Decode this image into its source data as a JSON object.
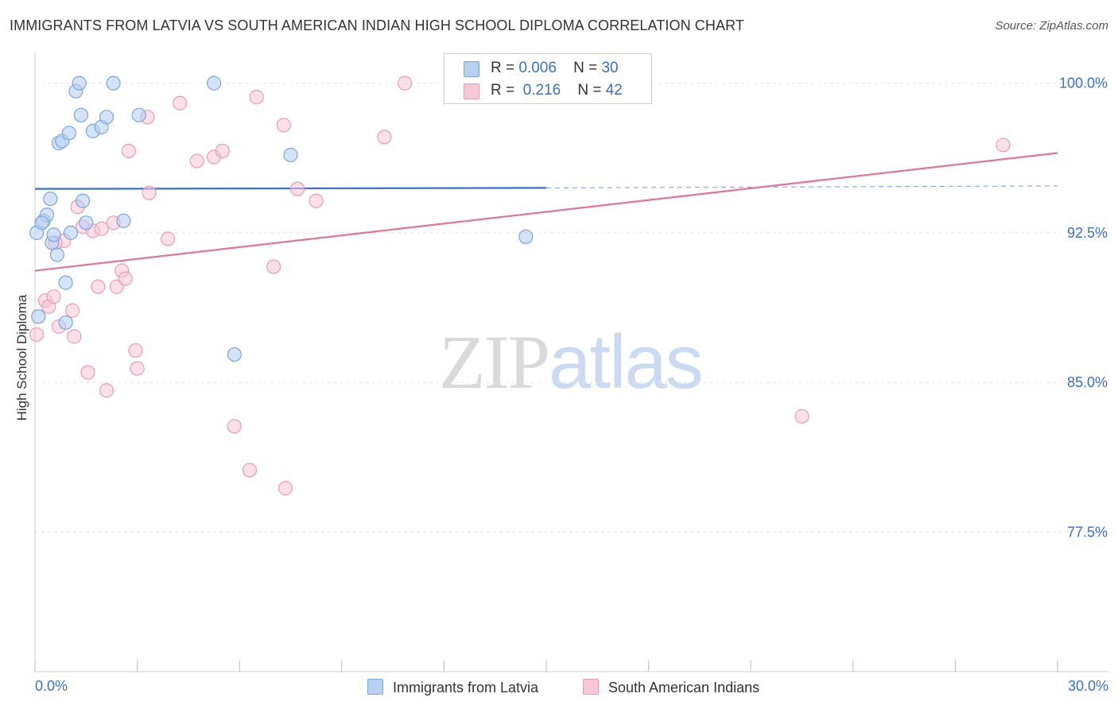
{
  "title": "IMMIGRANTS FROM LATVIA VS SOUTH AMERICAN INDIAN HIGH SCHOOL DIPLOMA CORRELATION CHART",
  "source": "Source: ZipAtlas.com",
  "watermark": {
    "zip": "ZIP",
    "atlas": "atlas"
  },
  "legend": {
    "rows": [
      {
        "r_label": "R =",
        "r_value": "0.006",
        "n_label": "N =",
        "n_value": "30"
      },
      {
        "r_label": "R =",
        "r_value": "0.216",
        "n_label": "N =",
        "n_value": "42"
      }
    ]
  },
  "bottom_legend": {
    "series1": "Immigrants from Latvia",
    "series2": "South American Indians"
  },
  "colors": {
    "series1_fill": "#b8d0f2",
    "series1_stroke": "#7aa6e0",
    "series1_line": "#3a6fd0",
    "series2_fill": "#f9c6d6",
    "series2_stroke": "#ee9ab5",
    "series2_line": "#e2739a",
    "tick_label": "#3a6fd0",
    "grid": "#e4e4e4"
  },
  "chart_data": {
    "type": "scatter",
    "title": "IMMIGRANTS FROM LATVIA VS SOUTH AMERICAN INDIAN HIGH SCHOOL DIPLOMA CORRELATION CHART",
    "xlabel": "",
    "ylabel": "High School Diploma",
    "xlim": [
      0,
      30
    ],
    "ylim": [
      70.5,
      101.5
    ],
    "x_tick_labels": [
      "0.0%",
      "30.0%"
    ],
    "y_ticks": [
      77.5,
      85.0,
      92.5,
      100.0
    ],
    "y_tick_labels": [
      "77.5%",
      "85.0%",
      "92.5%",
      "100.0%"
    ],
    "grid": true,
    "legend_position": "top-center",
    "series": [
      {
        "name": "Immigrants from Latvia",
        "r": 0.006,
        "n": 30,
        "trend": {
          "x0": 0,
          "y0": 94.7,
          "x1": 15,
          "y1": 94.75,
          "dashed_to_x": 30,
          "dashed_to_y": 94.85
        },
        "points": [
          [
            0.05,
            92.5
          ],
          [
            0.1,
            88.3
          ],
          [
            0.25,
            93.1
          ],
          [
            0.35,
            93.4
          ],
          [
            0.45,
            94.2
          ],
          [
            0.5,
            92.0
          ],
          [
            0.55,
            92.4
          ],
          [
            0.65,
            91.4
          ],
          [
            0.7,
            97.0
          ],
          [
            0.8,
            97.1
          ],
          [
            0.9,
            90.0
          ],
          [
            0.9,
            88.0
          ],
          [
            1.0,
            97.5
          ],
          [
            1.05,
            92.5
          ],
          [
            1.2,
            99.6
          ],
          [
            1.3,
            100.0
          ],
          [
            1.35,
            98.4
          ],
          [
            1.4,
            94.1
          ],
          [
            1.5,
            93.0
          ],
          [
            1.7,
            97.6
          ],
          [
            1.95,
            97.8
          ],
          [
            2.1,
            98.3
          ],
          [
            2.3,
            100.0
          ],
          [
            2.6,
            93.1
          ],
          [
            3.05,
            98.4
          ],
          [
            5.25,
            100.0
          ],
          [
            5.85,
            86.4
          ],
          [
            7.5,
            96.4
          ],
          [
            14.4,
            92.3
          ],
          [
            0.2,
            93.0
          ]
        ]
      },
      {
        "name": "South American Indians",
        "r": 0.216,
        "n": 42,
        "trend": {
          "x0": 0,
          "y0": 90.6,
          "x1": 30,
          "y1": 96.5
        },
        "points": [
          [
            0.05,
            87.4
          ],
          [
            0.3,
            89.1
          ],
          [
            0.4,
            88.8
          ],
          [
            0.55,
            89.3
          ],
          [
            0.7,
            87.8
          ],
          [
            0.85,
            92.1
          ],
          [
            1.1,
            88.6
          ],
          [
            1.15,
            87.3
          ],
          [
            1.25,
            93.8
          ],
          [
            1.4,
            92.8
          ],
          [
            1.55,
            85.5
          ],
          [
            1.7,
            92.6
          ],
          [
            1.85,
            89.8
          ],
          [
            1.95,
            92.7
          ],
          [
            2.1,
            84.6
          ],
          [
            2.3,
            93.0
          ],
          [
            2.4,
            89.8
          ],
          [
            2.55,
            90.6
          ],
          [
            2.65,
            90.2
          ],
          [
            2.75,
            96.6
          ],
          [
            2.95,
            86.6
          ],
          [
            3.0,
            85.7
          ],
          [
            3.3,
            98.3
          ],
          [
            3.35,
            94.5
          ],
          [
            3.9,
            92.2
          ],
          [
            4.25,
            99.0
          ],
          [
            4.75,
            96.1
          ],
          [
            5.25,
            96.3
          ],
          [
            5.5,
            96.6
          ],
          [
            5.85,
            82.8
          ],
          [
            6.3,
            80.6
          ],
          [
            6.5,
            99.3
          ],
          [
            7.0,
            90.8
          ],
          [
            7.3,
            97.9
          ],
          [
            7.35,
            79.7
          ],
          [
            7.7,
            94.7
          ],
          [
            8.25,
            94.1
          ],
          [
            10.25,
            97.3
          ],
          [
            10.85,
            100.0
          ],
          [
            22.5,
            83.3
          ],
          [
            28.4,
            96.9
          ],
          [
            0.6,
            92.0
          ]
        ]
      }
    ]
  }
}
